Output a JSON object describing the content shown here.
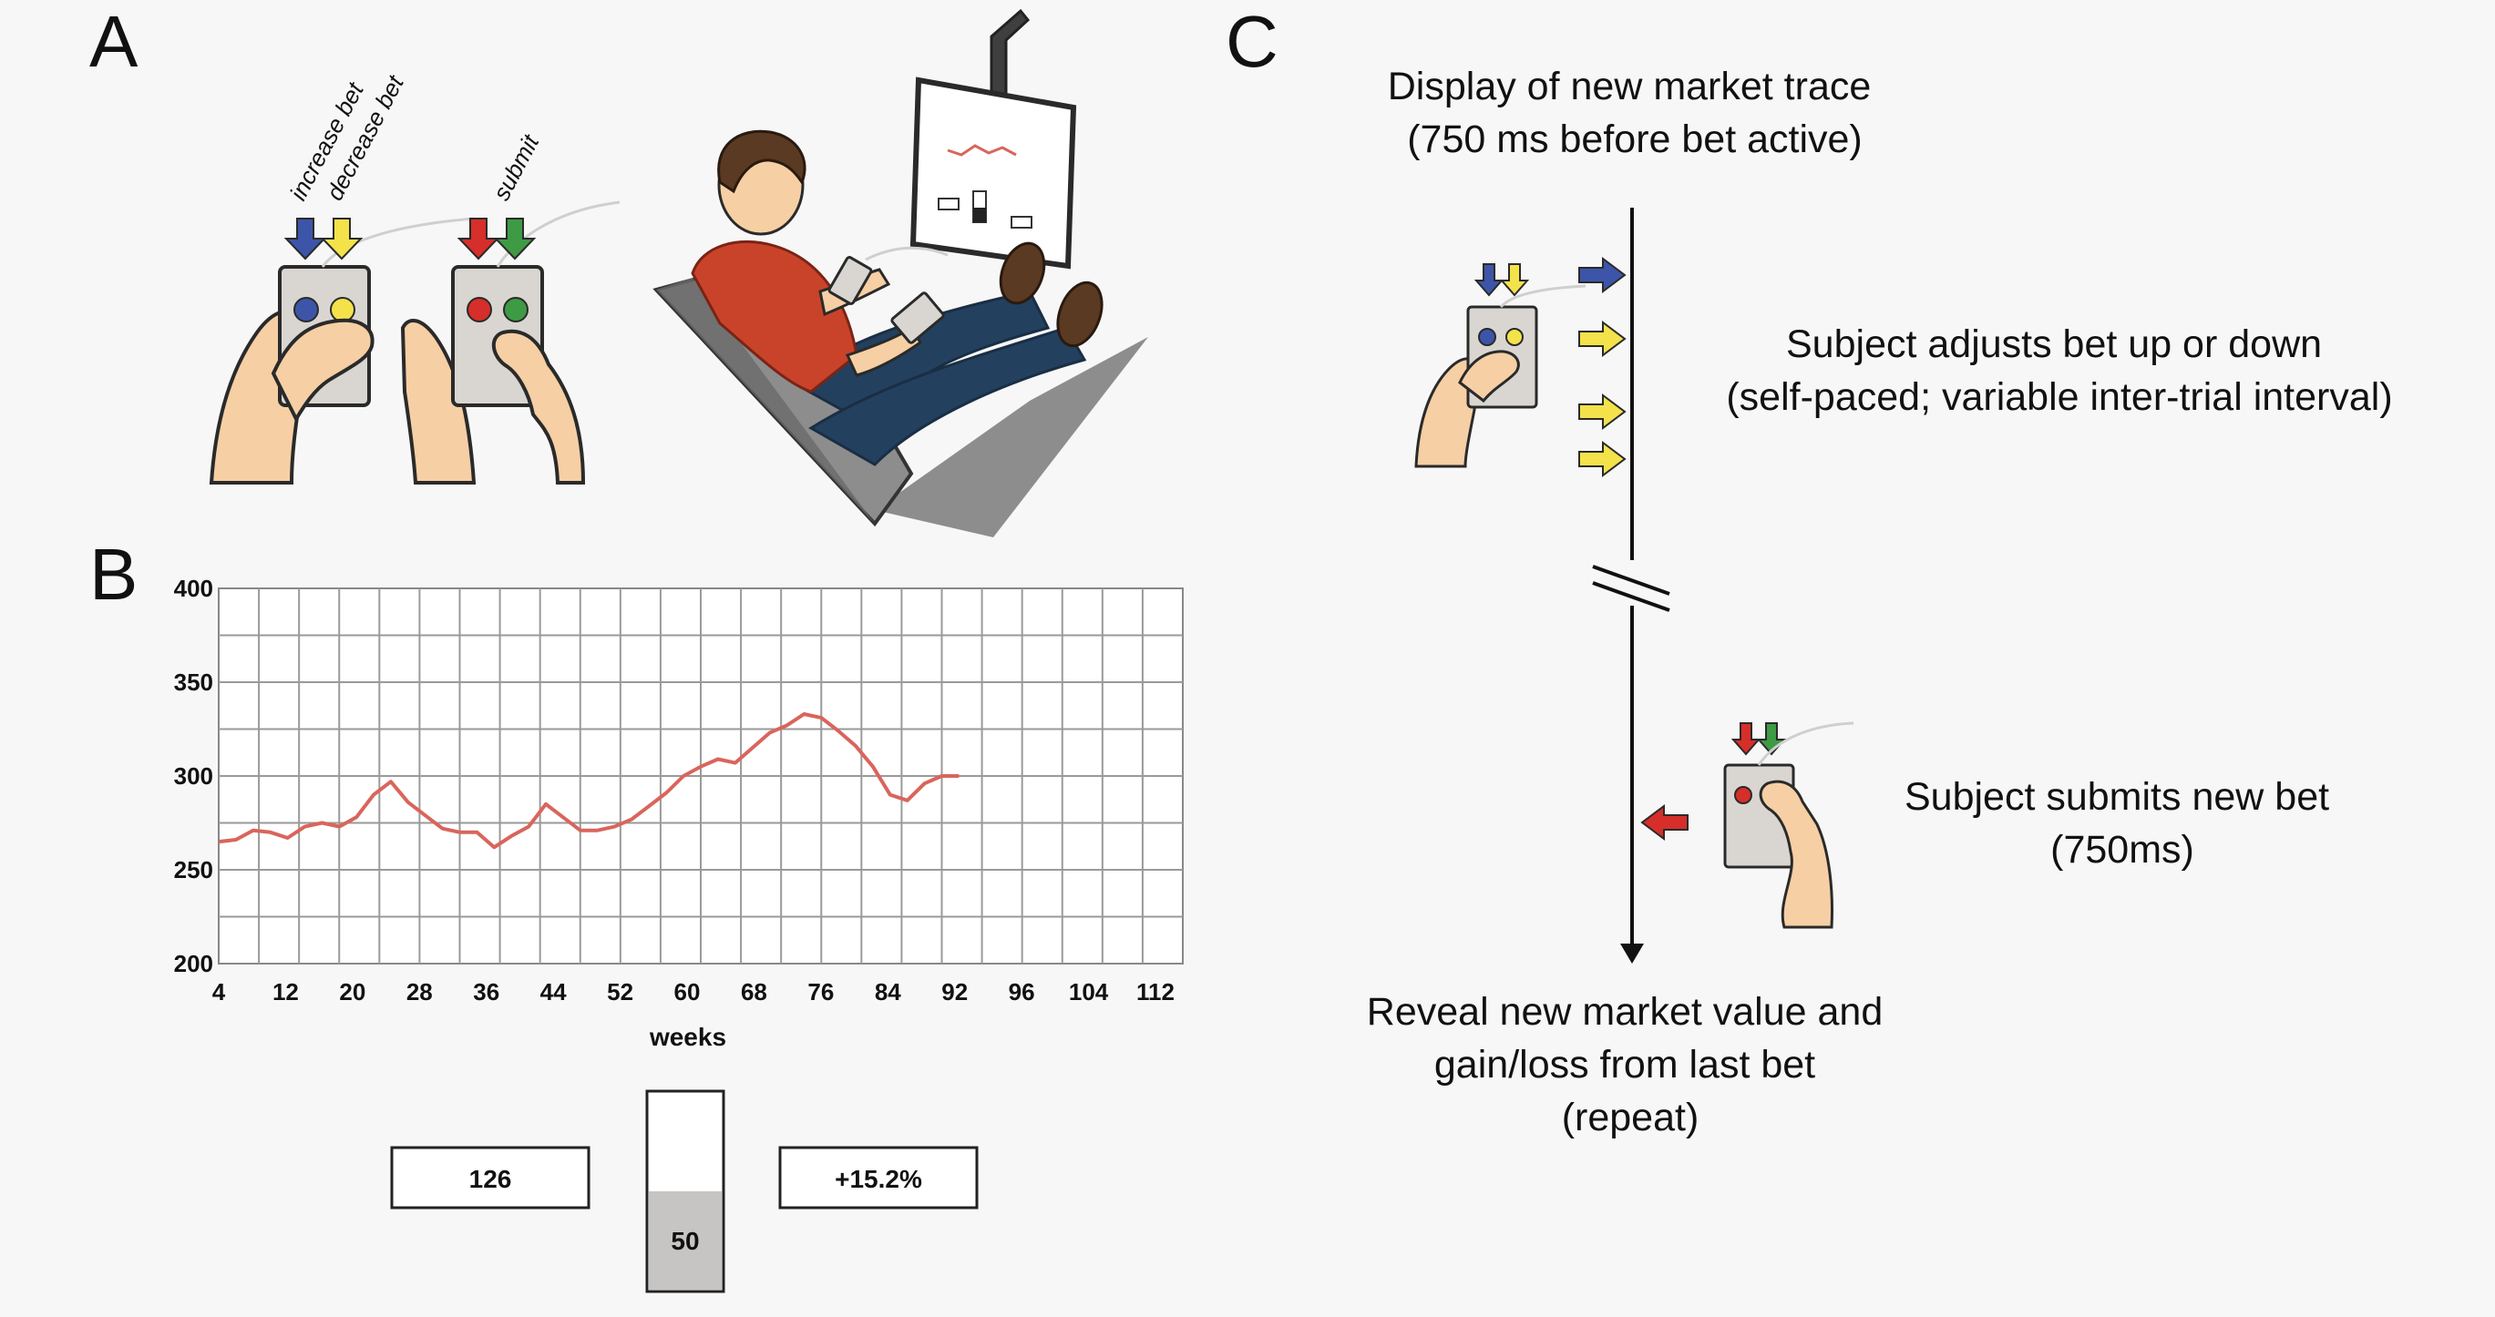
{
  "panels": {
    "a": {
      "label": "A",
      "arrow_labels": {
        "increase": "increase bet",
        "decrease": "decrease bet",
        "submit": "submit"
      }
    },
    "b": {
      "label": "B",
      "box_left": "126",
      "box_right": "+15.2%",
      "meter_value": "50",
      "meter_fill": 0.5
    },
    "c": {
      "label": "C",
      "step1_lines": [
        "Display of new market trace",
        "(750 ms before bet active)"
      ],
      "step2_lines": [
        "Subject adjusts bet up or down",
        "(self-paced; variable inter-trial interval)"
      ],
      "step3_lines": [
        "Subject submits new bet",
        "(750ms)"
      ],
      "step4_lines": [
        "Reveal new market value and",
        "gain/loss from last bet",
        "(repeat)"
      ]
    }
  },
  "colors": {
    "blue": "#3d55a8",
    "yellow": "#f4e24a",
    "red": "#d62e2a",
    "green": "#3f9a45",
    "trace": "#d9655c",
    "skin": "#f6cfa4",
    "shirt": "#c9432a",
    "jeans": "#23405f"
  },
  "chart_data": {
    "type": "line",
    "xlabel": "weeks",
    "ylabel": "",
    "xlim": [
      4,
      116
    ],
    "ylim": [
      200,
      400
    ],
    "xticks": [
      4,
      12,
      20,
      28,
      36,
      44,
      52,
      60,
      68,
      76,
      84,
      92,
      96,
      104,
      112
    ],
    "yticks": [
      400,
      350,
      300,
      250,
      200
    ],
    "series": [
      {
        "values_x": [
          4,
          6,
          8,
          10,
          12,
          14,
          16,
          18,
          20,
          22,
          24,
          26,
          28,
          30,
          32,
          34,
          36,
          38,
          40,
          42,
          44,
          46,
          48,
          50,
          52,
          54,
          56,
          58,
          60,
          62,
          64,
          66,
          68,
          70,
          72,
          74,
          76,
          78,
          80,
          82,
          84,
          86,
          88,
          90
        ],
        "values_y": [
          265,
          266,
          271,
          270,
          267,
          273,
          275,
          273,
          278,
          290,
          297,
          286,
          279,
          272,
          270,
          270,
          262,
          268,
          273,
          285,
          278,
          271,
          271,
          273,
          277,
          284,
          291,
          300,
          305,
          309,
          307,
          315,
          323,
          327,
          333,
          331,
          324,
          316,
          305,
          290,
          287,
          296,
          300,
          300
        ]
      }
    ]
  }
}
